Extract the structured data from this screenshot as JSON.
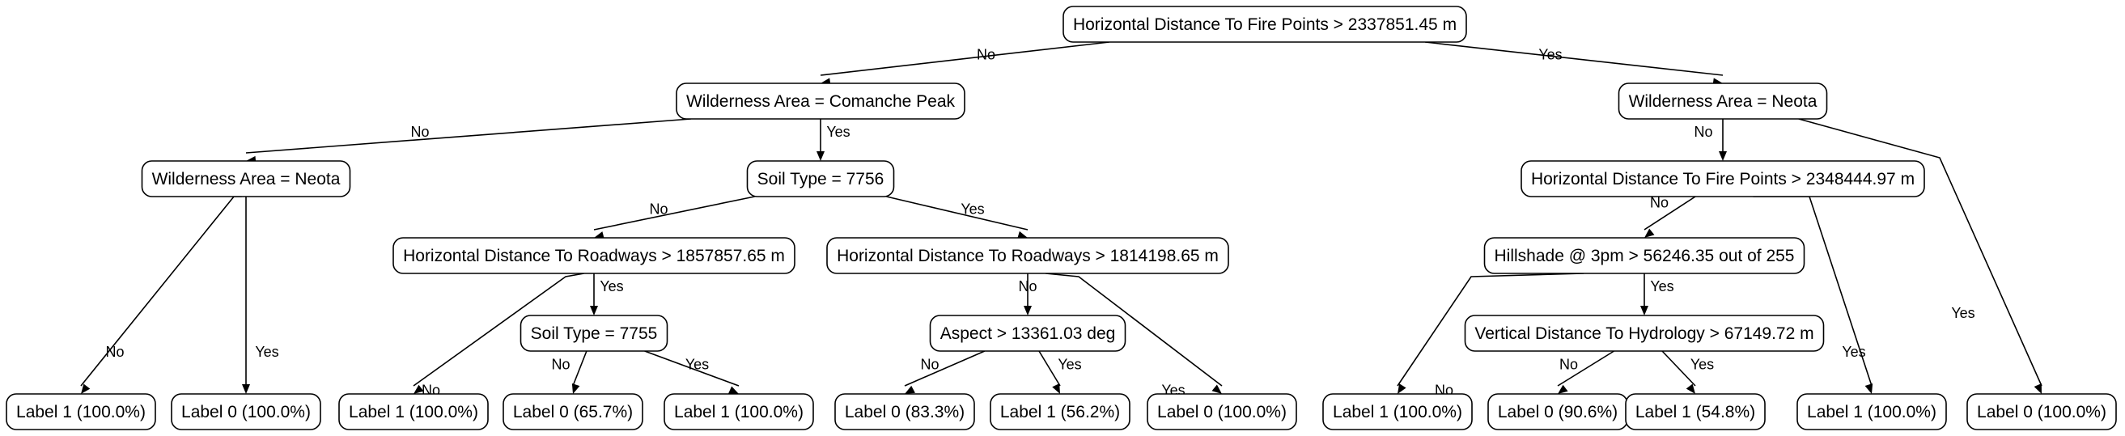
{
  "tree": {
    "nodes": [
      {
        "id": "n0",
        "label": "Horizontal Distance To Fire Points > 2337851.45 m"
      },
      {
        "id": "n1",
        "label": "Wilderness Area = Comanche Peak"
      },
      {
        "id": "n2",
        "label": "Wilderness Area = Neota"
      },
      {
        "id": "n3",
        "label": "Wilderness Area = Neota"
      },
      {
        "id": "n4",
        "label": "Soil Type = 7756"
      },
      {
        "id": "n5",
        "label": "Label 1 (100.0%)"
      },
      {
        "id": "n6",
        "label": "Label 0 (100.0%)"
      },
      {
        "id": "n7",
        "label": "Horizontal Distance To Roadways > 1857857.65 m"
      },
      {
        "id": "n8",
        "label": "Horizontal Distance To Roadways > 1814198.65 m"
      },
      {
        "id": "n9",
        "label": "Label 1 (100.0%)"
      },
      {
        "id": "n10",
        "label": "Soil Type = 7755"
      },
      {
        "id": "n11",
        "label": "Label 0 (65.7%)"
      },
      {
        "id": "n12",
        "label": "Label 1 (100.0%)"
      },
      {
        "id": "n13",
        "label": "Aspect > 13361.03 deg"
      },
      {
        "id": "n14",
        "label": "Label 0 (100.0%)"
      },
      {
        "id": "n15",
        "label": "Label 0 (83.3%)"
      },
      {
        "id": "n16",
        "label": "Label 1 (56.2%)"
      },
      {
        "id": "n17",
        "label": "Horizontal Distance To Fire Points > 2348444.97 m"
      },
      {
        "id": "n18",
        "label": "Label 0 (100.0%)"
      },
      {
        "id": "n19",
        "label": "Hillshade @ 3pm > 56246.35 out of 255"
      },
      {
        "id": "n20",
        "label": "Label 1 (100.0%)"
      },
      {
        "id": "n21",
        "label": "Label 1 (100.0%)"
      },
      {
        "id": "n22",
        "label": "Vertical Distance To Hydrology > 67149.72 m"
      },
      {
        "id": "n23",
        "label": "Label 0 (90.6%)"
      },
      {
        "id": "n24",
        "label": "Label 1 (54.8%)"
      }
    ],
    "edges": [
      {
        "from": "n0",
        "to": "n1",
        "label": "No"
      },
      {
        "from": "n0",
        "to": "n2",
        "label": "Yes"
      },
      {
        "from": "n1",
        "to": "n3",
        "label": "No"
      },
      {
        "from": "n1",
        "to": "n4",
        "label": "Yes"
      },
      {
        "from": "n3",
        "to": "n5",
        "label": "No"
      },
      {
        "from": "n3",
        "to": "n6",
        "label": "Yes"
      },
      {
        "from": "n4",
        "to": "n7",
        "label": "No"
      },
      {
        "from": "n4",
        "to": "n8",
        "label": "Yes"
      },
      {
        "from": "n7",
        "to": "n9",
        "label": "No"
      },
      {
        "from": "n7",
        "to": "n10",
        "label": "Yes"
      },
      {
        "from": "n10",
        "to": "n11",
        "label": "No"
      },
      {
        "from": "n10",
        "to": "n12",
        "label": "Yes"
      },
      {
        "from": "n8",
        "to": "n13",
        "label": "No"
      },
      {
        "from": "n8",
        "to": "n14",
        "label": "Yes"
      },
      {
        "from": "n13",
        "to": "n15",
        "label": "No"
      },
      {
        "from": "n13",
        "to": "n16",
        "label": "Yes"
      },
      {
        "from": "n2",
        "to": "n17",
        "label": "No"
      },
      {
        "from": "n2",
        "to": "n18",
        "label": "Yes"
      },
      {
        "from": "n17",
        "to": "n19",
        "label": "No"
      },
      {
        "from": "n17",
        "to": "n20",
        "label": "Yes"
      },
      {
        "from": "n19",
        "to": "n21",
        "label": "No"
      },
      {
        "from": "n19",
        "to": "n22",
        "label": "Yes"
      },
      {
        "from": "n22",
        "to": "n23",
        "label": "No"
      },
      {
        "from": "n22",
        "to": "n24",
        "label": "Yes"
      }
    ]
  }
}
